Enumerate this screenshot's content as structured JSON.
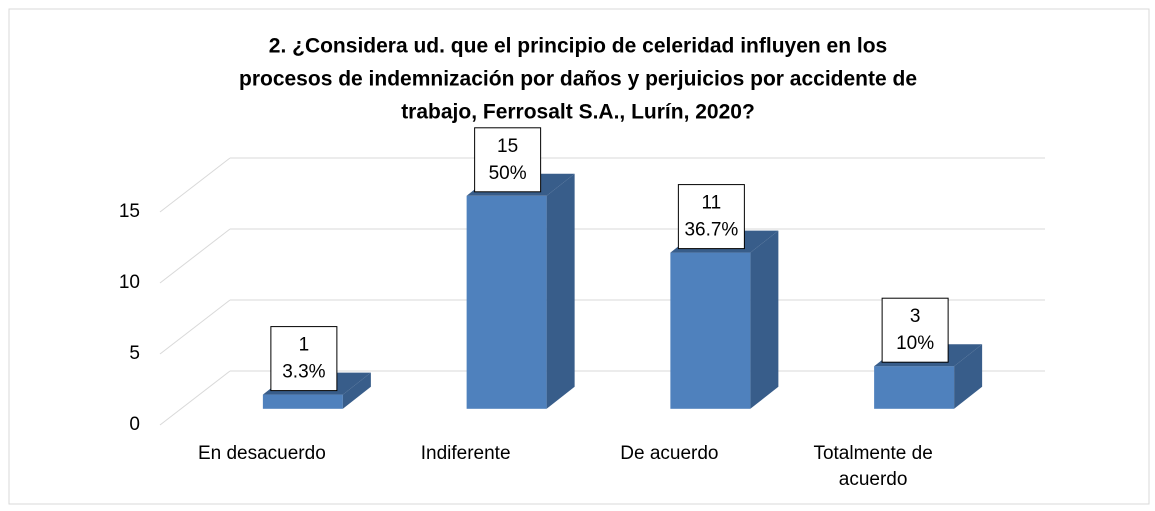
{
  "chart_data": {
    "type": "bar3d",
    "title_lines": [
      "2. ¿Considera ud. que el principio de celeridad influyen en los",
      "procesos de indemnización por daños y perjuicios por accidente de",
      "trabajo, Ferrosalt S.A., Lurín, 2020?"
    ],
    "categories": [
      [
        "En desacuerdo"
      ],
      [
        "Indiferente"
      ],
      [
        "De acuerdo"
      ],
      [
        "Totalmente de",
        "acuerdo"
      ]
    ],
    "values": [
      1,
      15,
      11,
      3
    ],
    "percent_labels": [
      "3.3%",
      "50%",
      "36.7%",
      "10%"
    ],
    "color": "#4f81bd",
    "side_color": "#385d8a",
    "ylim": [
      0,
      15
    ],
    "yticks": [
      0,
      5,
      10,
      15
    ],
    "grid": true
  }
}
